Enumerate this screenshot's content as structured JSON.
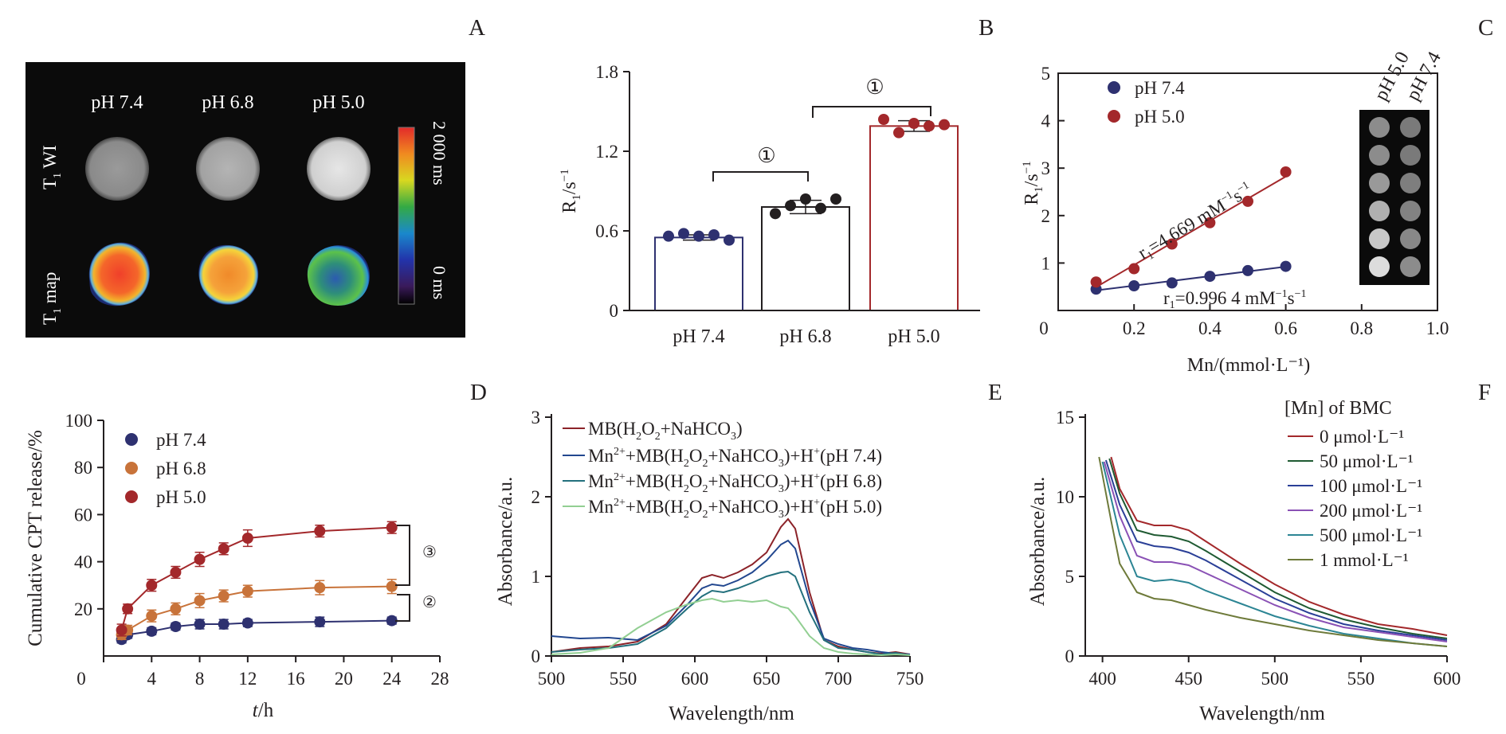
{
  "panel_letters": [
    "A",
    "B",
    "C",
    "D",
    "E",
    "F"
  ],
  "colors": {
    "navy": "#2e3170",
    "red": "#a3282b",
    "orange": "#c8733a",
    "black": "#231f20",
    "d_series": [
      "#8c2329",
      "#22478f",
      "#23707d",
      "#92cf92"
    ],
    "f_series": [
      "#a3282b",
      "#1f5a32",
      "#2a3f97",
      "#8a51b5",
      "#2c8594",
      "#6e7a3a"
    ]
  },
  "mri": {
    "columns": [
      "pH 7.4",
      "pH 6.8",
      "pH 5.0"
    ],
    "row_t1wi_prefix": "T",
    "row_t1wi_sub": "1",
    "row_t1wi_suffix": " WI",
    "row_t1map_prefix": "T",
    "row_t1map_sub": "1",
    "row_t1map_suffix": " map",
    "colorbar_max": "2 000 ms",
    "colorbar_min": "0 ms"
  },
  "phantom": {
    "labels": [
      "pH 5.0",
      "pH 7.4"
    ]
  },
  "chart_data": [
    {
      "id": "B",
      "type": "bar",
      "categories": [
        "pH 7.4",
        "pH 6.8",
        "pH 5.0"
      ],
      "values": [
        0.55,
        0.78,
        1.39
      ],
      "errors": [
        0.02,
        0.05,
        0.04
      ],
      "points": [
        [
          0.56,
          0.58,
          0.56,
          0.57,
          0.53
        ],
        [
          0.73,
          0.79,
          0.84,
          0.77,
          0.84
        ],
        [
          1.44,
          1.34,
          1.41,
          1.39,
          1.4
        ]
      ],
      "yticks": [
        "0",
        "0.6",
        "1.2",
        "1.8"
      ],
      "ylim": [
        0,
        1.8
      ],
      "ylabel_main": "R",
      "ylabel_sub": "1",
      "ylabel_unit": "/s",
      "ylabel_sup": "−1",
      "significance": [
        "①",
        "①"
      ]
    },
    {
      "id": "C",
      "type": "scatter",
      "series": [
        {
          "name": "pH 7.4",
          "x": [
            0.1,
            0.2,
            0.3,
            0.4,
            0.5,
            0.6
          ],
          "y": [
            0.45,
            0.52,
            0.58,
            0.72,
            0.84,
            0.93
          ]
        },
        {
          "name": "pH 5.0",
          "x": [
            0.1,
            0.2,
            0.3,
            0.4,
            0.5,
            0.6
          ],
          "y": [
            0.6,
            0.88,
            1.4,
            1.85,
            2.3,
            2.92
          ]
        }
      ],
      "xticks": [
        "0",
        "0.2",
        "0.4",
        "0.6",
        "0.8",
        "1.0"
      ],
      "yticks": [
        "1",
        "2",
        "3",
        "4",
        "5"
      ],
      "xlim": [
        0,
        1.0
      ],
      "ylim": [
        0,
        5
      ],
      "xlabel": "Mn/(mmol·L⁻¹)",
      "ylabel_main": "R",
      "ylabel_sub": "1",
      "ylabel_unit": "/s",
      "ylabel_sup": "−1",
      "annotation_red_main": "r",
      "annotation_red_sub": "1",
      "annotation_red_value": "=4.669 mM",
      "annotation_red_sup1": "−1",
      "annotation_red_s": "s",
      "annotation_red_sup2": "−1",
      "annotation_blue_main": "r",
      "annotation_blue_sub": "1",
      "annotation_blue_value": "=0.996 4 mM",
      "annotation_blue_sup1": "−1",
      "annotation_blue_s": "s",
      "annotation_blue_sup2": "−1"
    },
    {
      "id": "D",
      "type": "line",
      "series": [
        {
          "name": "pH 7.4",
          "x": [
            1.5,
            2,
            4,
            6,
            8,
            10,
            12,
            18,
            24
          ],
          "y": [
            7,
            9,
            10.5,
            12.5,
            13.5,
            13.5,
            14,
            14.5,
            15
          ],
          "err": [
            1.5,
            1.5,
            1.5,
            1.5,
            2,
            2,
            1.5,
            2,
            1.5
          ]
        },
        {
          "name": "pH 6.8",
          "x": [
            1.5,
            2,
            4,
            6,
            8,
            10,
            12,
            18,
            24
          ],
          "y": [
            9,
            11,
            17,
            20,
            23.5,
            25.5,
            27.5,
            29,
            29.5
          ],
          "err": [
            2,
            2,
            2.5,
            2.5,
            3,
            2.5,
            2.5,
            3,
            3
          ]
        },
        {
          "name": "pH 5.0",
          "x": [
            1.5,
            2,
            4,
            6,
            8,
            10,
            12,
            18,
            24
          ],
          "y": [
            11,
            20,
            30,
            35.5,
            41,
            45.5,
            50,
            53,
            54.5
          ],
          "err": [
            2.5,
            2,
            2.5,
            2.5,
            3,
            2.5,
            3.5,
            2.5,
            2.5
          ]
        }
      ],
      "xticks": [
        "0",
        "4",
        "8",
        "12",
        "16",
        "20",
        "24",
        "28"
      ],
      "yticks": [
        "20",
        "40",
        "60",
        "80",
        "100"
      ],
      "xlim": [
        0,
        28
      ],
      "ylim": [
        0,
        100
      ],
      "ylabel": "Cumulative CPT release/%",
      "xlabel_italic": "t",
      "xlabel_rest": "/h",
      "significance": [
        "③",
        "②"
      ]
    },
    {
      "id": "E",
      "type": "line",
      "xticks": [
        "500",
        "550",
        "600",
        "650",
        "700",
        "750"
      ],
      "yticks": [
        "0",
        "1",
        "2",
        "3"
      ],
      "xlim": [
        500,
        750
      ],
      "ylim": [
        0,
        3
      ],
      "xlabel": "Wavelength/nm",
      "ylabel": "Absorbance/a.u.",
      "legend": [
        {
          "a": "MB(H",
          "b": "2",
          "c": "O",
          "d": "2",
          "e": "+NaHCO",
          "f": "3",
          "g": ")"
        },
        {
          "pre": "Mn",
          "sup0": "2+",
          "a": "+MB(H",
          "b": "2",
          "c": "O",
          "d": "2",
          "e": "+NaHCO",
          "f": "3",
          "g": ")+H",
          "sup": "+",
          "h": "(pH 7.4)"
        },
        {
          "pre": "Mn",
          "sup0": "2+",
          "a": "+MB(H",
          "b": "2",
          "c": "O",
          "d": "2",
          "e": "+NaHCO",
          "f": "3",
          "g": ")+H",
          "sup": "+",
          "h": "(pH 6.8)"
        },
        {
          "pre": "Mn",
          "sup0": "2+",
          "a": "+MB(H",
          "b": "2",
          "c": "O",
          "d": "2",
          "e": "+NaHCO",
          "f": "3",
          "g": ")+H",
          "sup": "+",
          "h": "(pH 5.0)"
        }
      ],
      "series": [
        {
          "x": [
            500,
            520,
            540,
            560,
            580,
            595,
            605,
            612,
            620,
            630,
            640,
            650,
            660,
            665,
            670,
            680,
            690,
            700,
            710,
            720,
            730,
            740,
            750
          ],
          "y": [
            0.05,
            0.1,
            0.12,
            0.18,
            0.4,
            0.75,
            0.98,
            1.02,
            0.98,
            1.05,
            1.15,
            1.3,
            1.62,
            1.72,
            1.6,
            0.8,
            0.2,
            0.12,
            0.08,
            0.05,
            0.03,
            0.05,
            0.02
          ]
        },
        {
          "x": [
            500,
            520,
            540,
            560,
            580,
            595,
            605,
            612,
            620,
            630,
            640,
            650,
            660,
            665,
            670,
            680,
            690,
            700,
            710,
            720,
            730,
            740,
            750
          ],
          "y": [
            0.25,
            0.22,
            0.23,
            0.2,
            0.38,
            0.65,
            0.85,
            0.9,
            0.88,
            0.95,
            1.05,
            1.2,
            1.4,
            1.45,
            1.35,
            0.7,
            0.22,
            0.15,
            0.1,
            0.08,
            0.05,
            0.03,
            0.02
          ]
        },
        {
          "x": [
            500,
            520,
            540,
            560,
            580,
            595,
            605,
            612,
            620,
            630,
            640,
            650,
            660,
            665,
            670,
            680,
            690,
            700,
            710,
            720,
            730,
            740,
            750
          ],
          "y": [
            0.05,
            0.08,
            0.1,
            0.15,
            0.35,
            0.6,
            0.75,
            0.82,
            0.8,
            0.85,
            0.92,
            1.0,
            1.05,
            1.06,
            1.0,
            0.55,
            0.2,
            0.1,
            0.08,
            0.05,
            0.02,
            0.04,
            0.01
          ]
        },
        {
          "x": [
            500,
            520,
            540,
            560,
            580,
            595,
            605,
            612,
            620,
            630,
            640,
            650,
            660,
            665,
            670,
            680,
            690,
            700,
            710,
            720,
            730,
            740,
            750
          ],
          "y": [
            0.02,
            0.04,
            0.1,
            0.35,
            0.55,
            0.65,
            0.7,
            0.72,
            0.68,
            0.7,
            0.68,
            0.7,
            0.62,
            0.6,
            0.5,
            0.25,
            0.1,
            0.05,
            0.03,
            0.02,
            0.01,
            0.02,
            0.01
          ]
        }
      ]
    },
    {
      "id": "F",
      "type": "line",
      "xticks": [
        "400",
        "450",
        "500",
        "550",
        "600"
      ],
      "yticks": [
        "0",
        "5",
        "10",
        "15"
      ],
      "xlim": [
        390,
        600
      ],
      "ylim": [
        0,
        15
      ],
      "xlabel": "Wavelength/nm",
      "ylabel": "Absorbance/a.u.",
      "legend_title": "[Mn] of BMC",
      "series": [
        {
          "name": "0 μmol·L⁻¹",
          "x": [
            405,
            410,
            420,
            430,
            440,
            450,
            460,
            480,
            500,
            520,
            540,
            560,
            580,
            600
          ],
          "y": [
            12.5,
            10.5,
            8.5,
            8.2,
            8.2,
            7.9,
            7.2,
            5.8,
            4.5,
            3.4,
            2.6,
            2.0,
            1.7,
            1.3
          ]
        },
        {
          "name": "50 μmol·L⁻¹",
          "x": [
            404,
            410,
            420,
            430,
            440,
            450,
            460,
            480,
            500,
            520,
            540,
            560,
            580,
            600
          ],
          "y": [
            12.4,
            10.2,
            7.9,
            7.6,
            7.5,
            7.2,
            6.6,
            5.3,
            4.0,
            3.0,
            2.3,
            1.8,
            1.4,
            1.1
          ]
        },
        {
          "name": "100 μmol·L⁻¹",
          "x": [
            402,
            410,
            420,
            430,
            440,
            450,
            460,
            480,
            500,
            520,
            540,
            560,
            580,
            600
          ],
          "y": [
            12.3,
            9.5,
            7.2,
            6.9,
            6.8,
            6.5,
            6.0,
            4.8,
            3.6,
            2.7,
            2.0,
            1.6,
            1.3,
            1.0
          ]
        },
        {
          "name": "200 μmol·L⁻¹",
          "x": [
            401,
            410,
            420,
            430,
            440,
            450,
            460,
            480,
            500,
            520,
            540,
            560,
            580,
            600
          ],
          "y": [
            12.2,
            8.8,
            6.3,
            5.9,
            5.9,
            5.7,
            5.2,
            4.2,
            3.2,
            2.4,
            1.8,
            1.5,
            1.2,
            0.9
          ]
        },
        {
          "name": "500 μmol·L⁻¹",
          "x": [
            400,
            410,
            420,
            430,
            440,
            450,
            460,
            480,
            500,
            520,
            540,
            560,
            580,
            600
          ],
          "y": [
            12.2,
            7.6,
            5.0,
            4.7,
            4.8,
            4.6,
            4.1,
            3.3,
            2.5,
            1.9,
            1.4,
            1.1,
            0.8,
            0.6
          ]
        },
        {
          "name": "1 mmol·L⁻¹",
          "x": [
            398,
            405,
            410,
            420,
            430,
            440,
            450,
            460,
            480,
            500,
            520,
            540,
            560,
            580,
            600
          ],
          "y": [
            12.5,
            8.5,
            5.8,
            4.0,
            3.6,
            3.5,
            3.2,
            2.9,
            2.4,
            2.0,
            1.6,
            1.3,
            1.0,
            0.8,
            0.6
          ]
        }
      ]
    }
  ]
}
